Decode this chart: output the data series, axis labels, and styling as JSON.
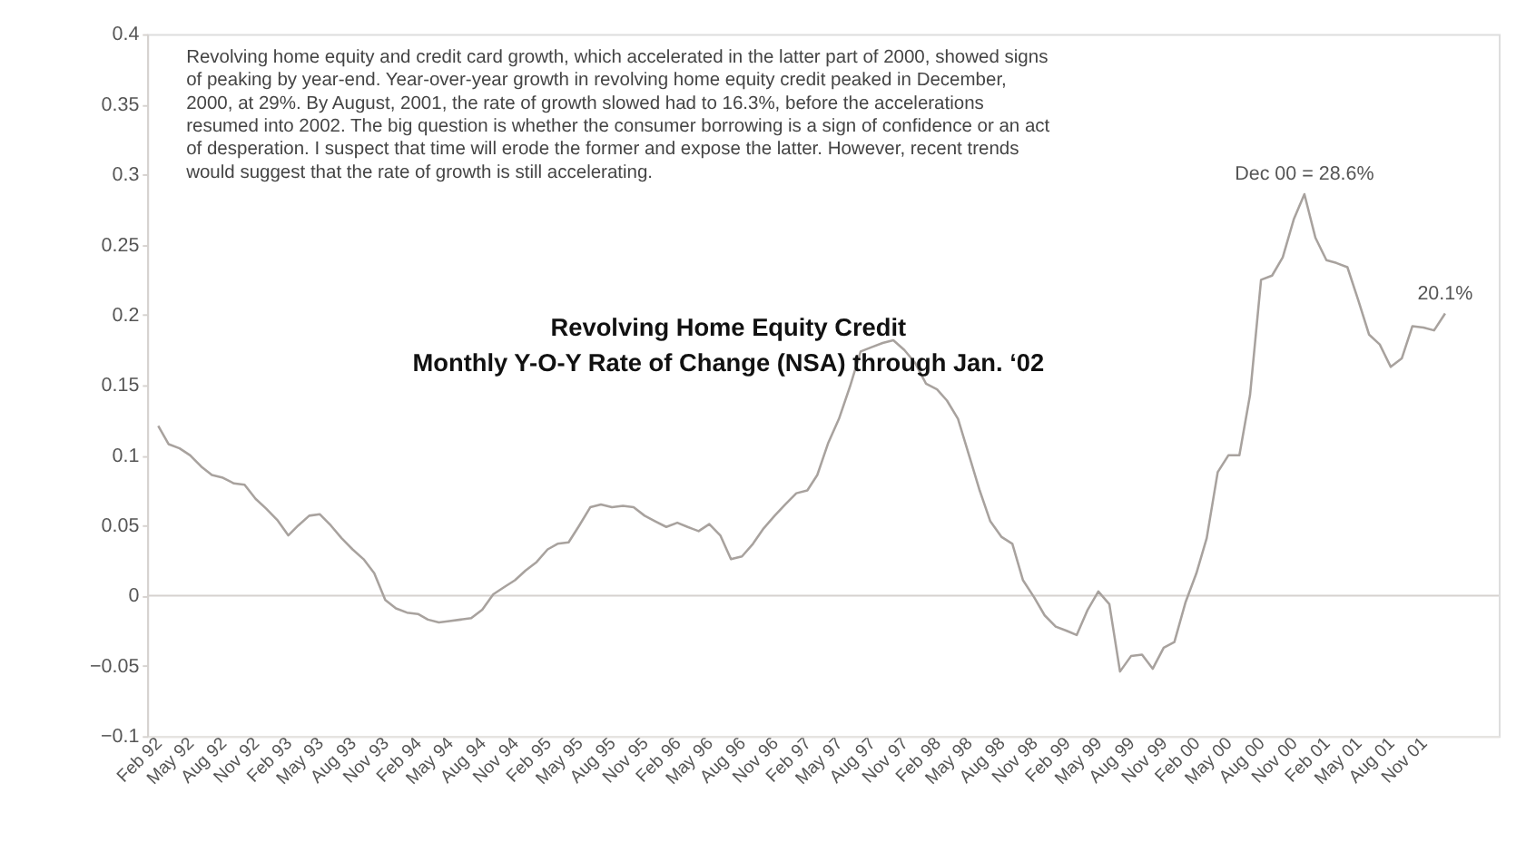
{
  "chart_data": {
    "type": "line",
    "title": "Revolving Home Equity Credit",
    "subtitle": "Monthly Y-O-Y Rate of Change (NSA) through Jan. ‘02",
    "x": [
      "1992-02",
      "1992-03",
      "1992-04",
      "1992-05",
      "1992-06",
      "1992-07",
      "1992-08",
      "1992-09",
      "1992-10",
      "1992-11",
      "1992-12",
      "1993-01",
      "1993-02",
      "1993-03",
      "1993-04",
      "1993-05",
      "1993-06",
      "1993-07",
      "1993-08",
      "1993-09",
      "1993-10",
      "1993-11",
      "1993-12",
      "1994-01",
      "1994-02",
      "1994-03",
      "1994-04",
      "1994-05",
      "1994-06",
      "1994-07",
      "1994-08",
      "1994-09",
      "1994-10",
      "1994-11",
      "1994-12",
      "1995-01",
      "1995-02",
      "1995-03",
      "1995-04",
      "1995-05",
      "1995-06",
      "1995-07",
      "1995-08",
      "1995-09",
      "1995-10",
      "1995-11",
      "1995-12",
      "1996-01",
      "1996-02",
      "1996-03",
      "1996-04",
      "1996-05",
      "1996-06",
      "1996-07",
      "1996-08",
      "1996-09",
      "1996-10",
      "1996-11",
      "1996-12",
      "1997-01",
      "1997-02",
      "1997-03",
      "1997-04",
      "1997-05",
      "1997-06",
      "1997-07",
      "1997-08",
      "1997-09",
      "1997-10",
      "1997-11",
      "1997-12",
      "1998-01",
      "1998-02",
      "1998-03",
      "1998-04",
      "1998-05",
      "1998-06",
      "1998-07",
      "1998-08",
      "1998-09",
      "1998-10",
      "1998-11",
      "1998-12",
      "1999-01",
      "1999-02",
      "1999-03",
      "1999-04",
      "1999-05",
      "1999-06",
      "1999-07",
      "1999-08",
      "1999-09",
      "1999-10",
      "1999-11",
      "1999-12",
      "2000-01",
      "2000-02",
      "2000-03",
      "2000-04",
      "2000-05",
      "2000-06",
      "2000-07",
      "2000-08",
      "2000-09",
      "2000-10",
      "2000-11",
      "2000-12",
      "2001-01",
      "2001-02",
      "2001-03",
      "2001-04",
      "2001-05",
      "2001-06",
      "2001-07",
      "2001-08",
      "2001-09",
      "2001-10",
      "2001-11",
      "2001-12",
      "2002-01"
    ],
    "series": [
      {
        "color": "#a8a29e",
        "values": [
          0.121,
          0.108,
          0.105,
          0.1,
          0.092,
          0.086,
          0.084,
          0.08,
          0.079,
          0.069,
          0.062,
          0.054,
          0.043,
          0.05,
          0.057,
          0.058,
          0.05,
          0.041,
          0.033,
          0.026,
          0.016,
          -0.003,
          -0.009,
          -0.012,
          -0.013,
          -0.017,
          -0.019,
          -0.018,
          -0.017,
          -0.016,
          -0.01,
          0.001,
          0.006,
          0.011,
          0.018,
          0.024,
          0.033,
          0.037,
          0.038,
          0.05,
          0.063,
          0.065,
          0.063,
          0.064,
          0.063,
          0.057,
          0.053,
          0.049,
          0.052,
          0.049,
          0.046,
          0.051,
          0.043,
          0.026,
          0.028,
          0.037,
          0.048,
          0.057,
          0.065,
          0.073,
          0.075,
          0.086,
          0.109,
          0.126,
          0.149,
          0.174,
          0.177,
          0.18,
          0.182,
          0.175,
          0.166,
          0.151,
          0.147,
          0.139,
          0.126,
          0.101,
          0.075,
          0.053,
          0.042,
          0.037,
          0.011,
          -0.001,
          -0.014,
          -0.022,
          -0.025,
          -0.028,
          -0.01,
          0.003,
          -0.006,
          -0.054,
          -0.043,
          -0.042,
          -0.052,
          -0.037,
          -0.033,
          -0.005,
          0.016,
          0.041,
          0.088,
          0.1,
          0.1,
          0.143,
          0.225,
          0.228,
          0.241,
          0.268,
          0.286,
          0.255,
          0.239,
          0.237,
          0.234,
          0.211,
          0.186,
          0.179,
          0.163,
          0.169,
          0.192,
          0.191,
          0.189,
          0.201
        ]
      }
    ],
    "xlim": [
      "1992-01",
      "2002-06"
    ],
    "xticks": [
      {
        "value": "1992-02",
        "label": "Feb 92"
      },
      {
        "value": "1992-05",
        "label": "May 92"
      },
      {
        "value": "1992-08",
        "label": "Aug 92"
      },
      {
        "value": "1992-11",
        "label": "Nov 92"
      },
      {
        "value": "1993-02",
        "label": "Feb 93"
      },
      {
        "value": "1993-05",
        "label": "May 93"
      },
      {
        "value": "1993-08",
        "label": "Aug 93"
      },
      {
        "value": "1993-11",
        "label": "Nov 93"
      },
      {
        "value": "1994-02",
        "label": "Feb 94"
      },
      {
        "value": "1994-05",
        "label": "May 94"
      },
      {
        "value": "1994-08",
        "label": "Aug 94"
      },
      {
        "value": "1994-11",
        "label": "Nov 94"
      },
      {
        "value": "1995-02",
        "label": "Feb 95"
      },
      {
        "value": "1995-05",
        "label": "May 95"
      },
      {
        "value": "1995-08",
        "label": "Aug 95"
      },
      {
        "value": "1995-11",
        "label": "Nov 95"
      },
      {
        "value": "1996-02",
        "label": "Feb 96"
      },
      {
        "value": "1996-05",
        "label": "May 96"
      },
      {
        "value": "1996-08",
        "label": "Aug 96"
      },
      {
        "value": "1996-11",
        "label": "Nov 96"
      },
      {
        "value": "1997-02",
        "label": "Feb 97"
      },
      {
        "value": "1997-05",
        "label": "May 97"
      },
      {
        "value": "1997-08",
        "label": "Aug 97"
      },
      {
        "value": "1997-11",
        "label": "Nov 97"
      },
      {
        "value": "1998-02",
        "label": "Feb 98"
      },
      {
        "value": "1998-05",
        "label": "May 98"
      },
      {
        "value": "1998-08",
        "label": "Aug 98"
      },
      {
        "value": "1998-11",
        "label": "Nov 98"
      },
      {
        "value": "1999-02",
        "label": "Feb 99"
      },
      {
        "value": "1999-05",
        "label": "May 99"
      },
      {
        "value": "1999-08",
        "label": "Aug 99"
      },
      {
        "value": "1999-11",
        "label": "Nov 99"
      },
      {
        "value": "2000-02",
        "label": "Feb 00"
      },
      {
        "value": "2000-05",
        "label": "May 00"
      },
      {
        "value": "2000-08",
        "label": "Aug 00"
      },
      {
        "value": "2000-11",
        "label": "Nov 00"
      },
      {
        "value": "2001-02",
        "label": "Feb 01"
      },
      {
        "value": "2001-05",
        "label": "May 01"
      },
      {
        "value": "2001-08",
        "label": "Aug 01"
      },
      {
        "value": "2001-11",
        "label": "Nov 01"
      }
    ],
    "ylim": [
      -0.1,
      0.4
    ],
    "yticks": [
      -0.1,
      -0.05,
      0,
      0.05,
      0.1,
      0.15,
      0.2,
      0.25,
      0.3,
      0.35,
      0.4
    ],
    "ref_lines": [
      {
        "axis": "y",
        "value": 0,
        "color": "#d6d2cf"
      }
    ],
    "annotations": [
      "Revolving home equity and credit card growth, which accelerated in the latter part of 2000, showed signs\nof peaking by year-end.  Year-over-year growth in revolving home equity credit peaked in December,\n2000, at 29%.  By August, 2001, the rate of growth slowed had to 16.3%, before the accelerations\nresumed into 2002.  The big question is whether the consumer borrowing is a sign of confidence or an act\nof desperation.  I suspect that time will erode the former and expose the latter.  However, recent trends\nwould suggest that the rate of growth is still accelerating.",
      {
        "text": "Dec 00 = 28.6%",
        "x": "2000-12",
        "y": 0.286
      },
      {
        "text": "20.1%",
        "x": "2002-01",
        "y": 0.201
      }
    ],
    "grid": false,
    "marker": "none",
    "line_style": "solid"
  }
}
